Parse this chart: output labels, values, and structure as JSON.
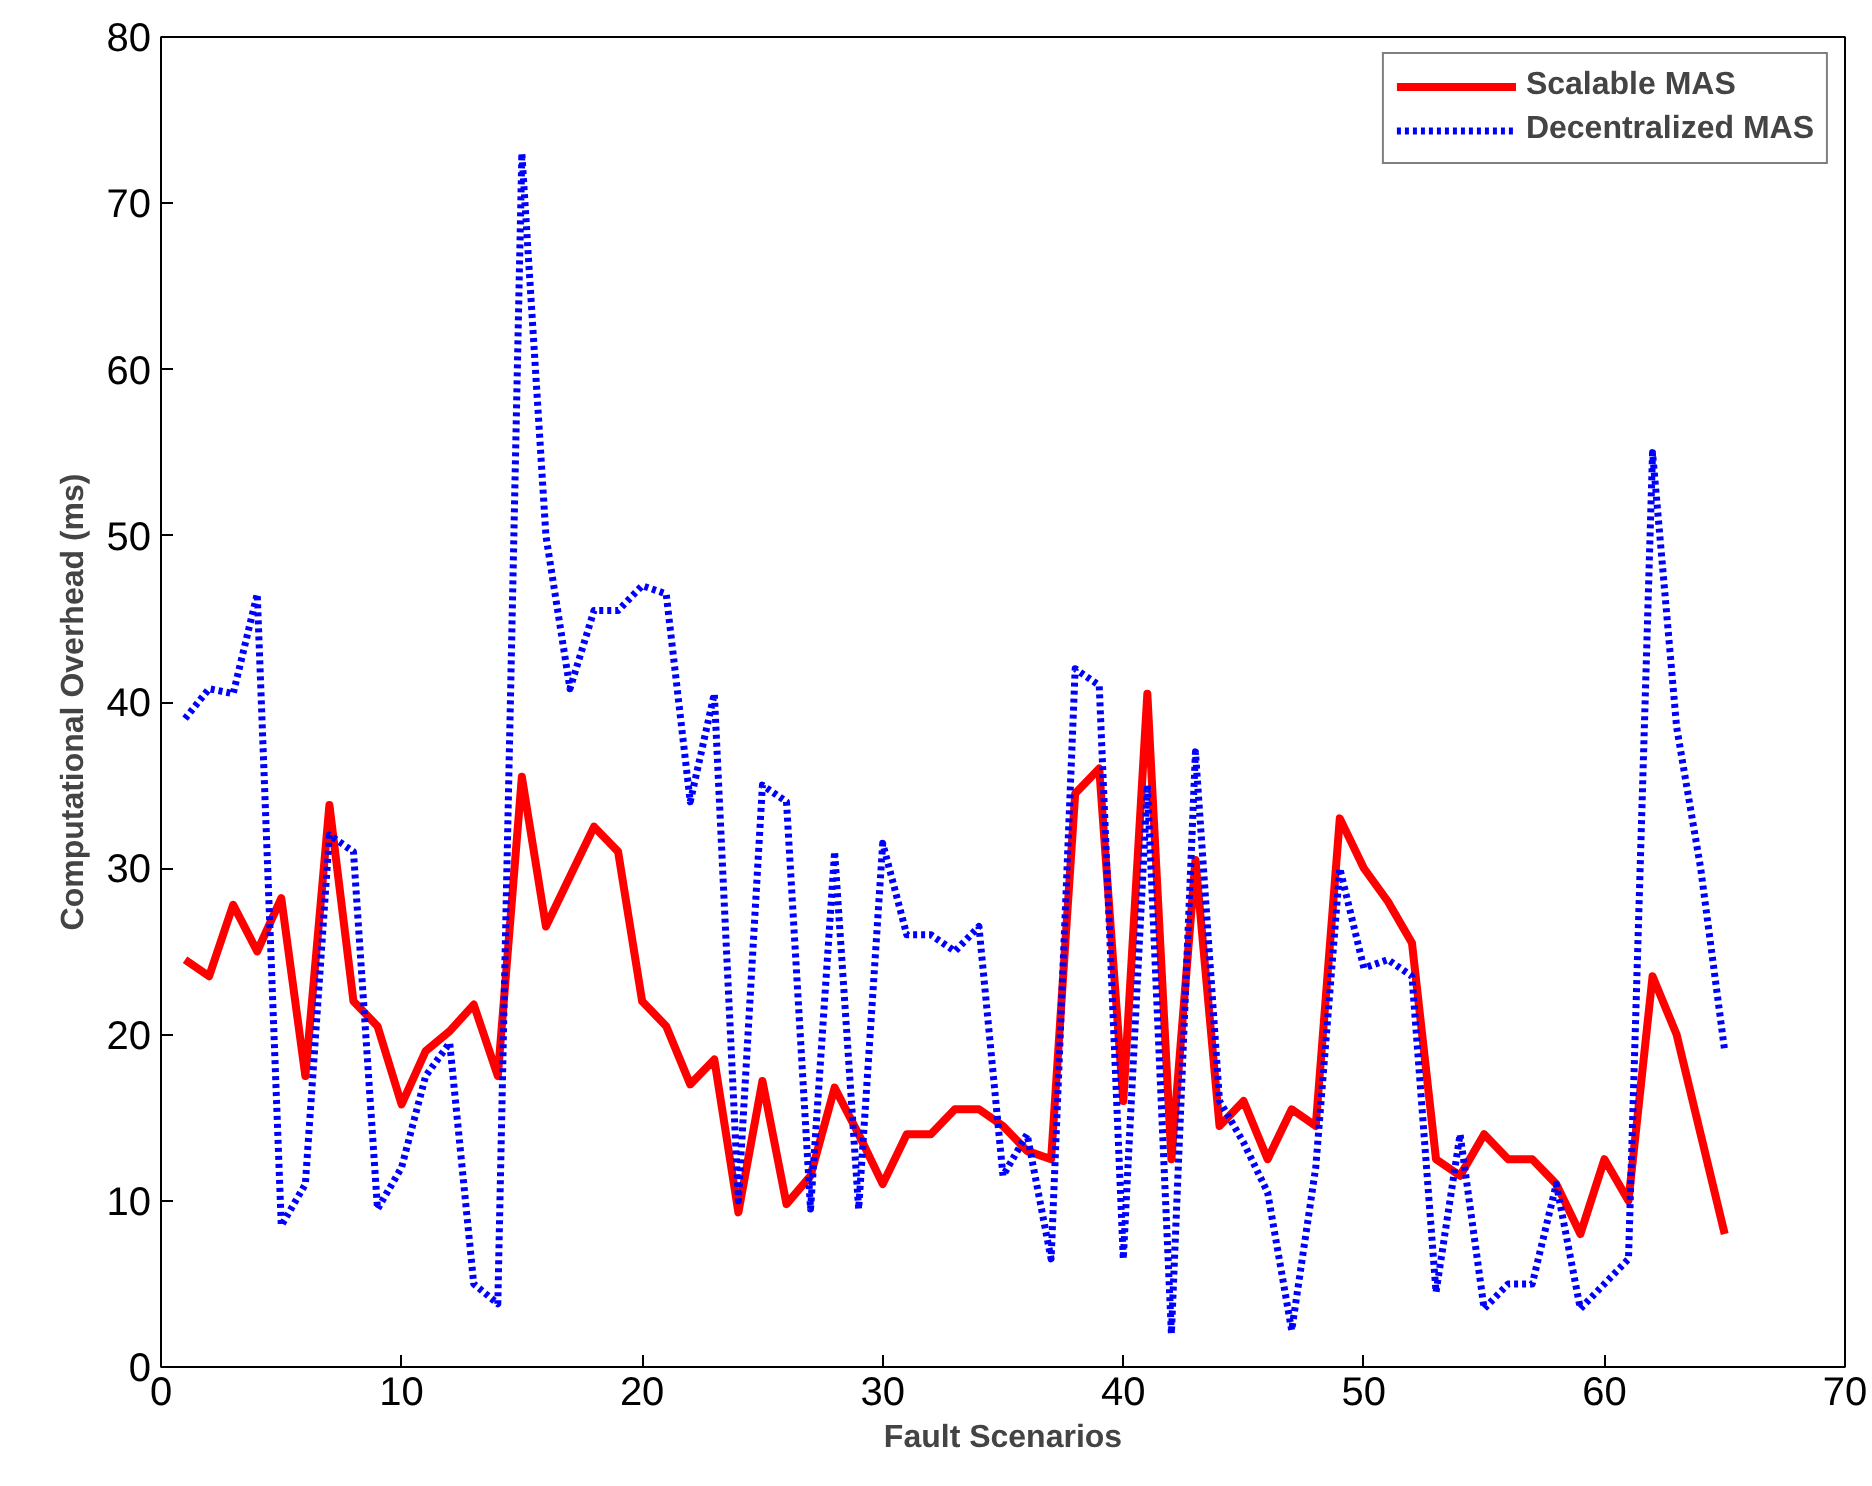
{
  "chart_data": {
    "type": "line",
    "xlabel": "Fault Scenarios",
    "ylabel": "Computational Overhead (ms)",
    "x": [
      1,
      2,
      3,
      4,
      5,
      6,
      7,
      8,
      9,
      10,
      11,
      12,
      13,
      14,
      15,
      16,
      17,
      18,
      19,
      20,
      21,
      22,
      23,
      24,
      25,
      26,
      27,
      28,
      29,
      30,
      31,
      32,
      33,
      34,
      35,
      36,
      37,
      38,
      39,
      40,
      41,
      42,
      43,
      44,
      45,
      46,
      47,
      48,
      49,
      50,
      51,
      52,
      53,
      54,
      55,
      56,
      57,
      58,
      59,
      60,
      61,
      62,
      63,
      64,
      65
    ],
    "series": [
      {
        "name": "Scalable MAS",
        "color": "#ff0000",
        "line_style": "solid",
        "values": [
          24.5,
          23.5,
          27.8,
          25,
          28.2,
          17.5,
          33.8,
          22,
          20.5,
          15.8,
          19,
          20.2,
          21.8,
          17.5,
          35.5,
          26.5,
          29.5,
          32.5,
          31,
          22,
          20.5,
          17,
          18.5,
          9.3,
          17.2,
          9.8,
          11.5,
          16.8,
          14,
          11,
          14,
          14,
          15.5,
          15.5,
          14.5,
          13,
          12.5,
          34.5,
          36,
          16,
          40.5,
          12.5,
          30.5,
          14.5,
          16,
          12.5,
          15.5,
          14.5,
          33,
          30,
          28,
          25.5,
          12.5,
          11.5,
          14,
          12.5,
          12.5,
          11,
          8,
          12.5,
          10,
          23.5,
          20,
          14,
          8
        ]
      },
      {
        "name": "Decentralized MAS",
        "color": "#0000ff",
        "line_style": "dotted",
        "values": [
          39,
          40.8,
          40.5,
          46.5,
          8.5,
          11,
          32,
          31,
          9.5,
          12,
          17.5,
          19.5,
          5,
          3.8,
          73,
          50,
          40.8,
          45.5,
          45.5,
          47,
          46.5,
          34,
          40.5,
          10,
          35,
          34,
          9.5,
          31,
          9.5,
          31.5,
          26,
          26,
          25,
          26.5,
          11.5,
          14,
          6.5,
          42,
          41,
          6.5,
          35,
          2,
          37,
          16,
          13.5,
          10.5,
          2.2,
          12,
          30,
          24,
          24.5,
          23.5,
          4.5,
          14,
          3.5,
          5,
          5,
          11,
          3.5,
          5,
          6.5,
          55,
          38.5,
          30,
          19
        ]
      }
    ],
    "xlim": [
      0,
      70
    ],
    "ylim": [
      0,
      80
    ],
    "xticks": [
      0,
      10,
      20,
      30,
      40,
      50,
      60,
      70
    ],
    "yticks": [
      0,
      10,
      20,
      30,
      40,
      50,
      60,
      70,
      80
    ],
    "grid": false,
    "legend": "top right"
  }
}
